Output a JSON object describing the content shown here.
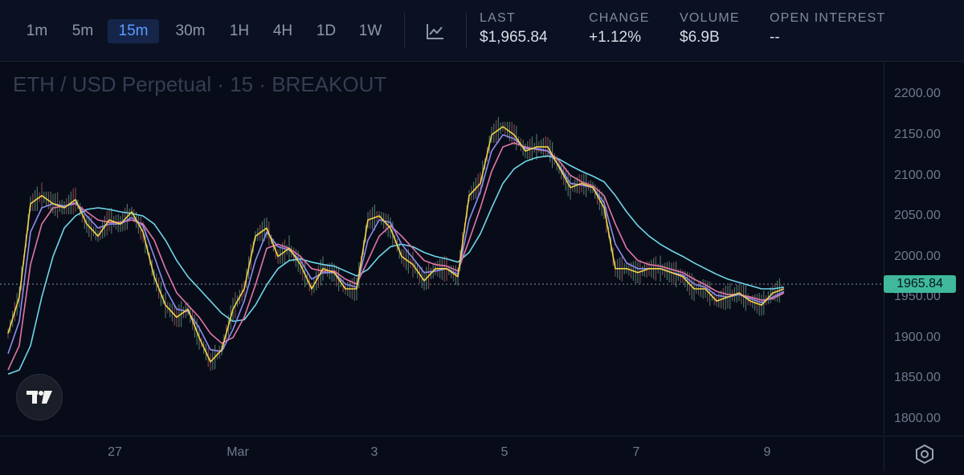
{
  "toolbar": {
    "timeframes": [
      "1m",
      "5m",
      "15m",
      "30m",
      "1H",
      "4H",
      "1D",
      "1W"
    ],
    "active_timeframe": "15m",
    "chart_type_icon": "line-chart-icon"
  },
  "stats": [
    {
      "label": "LAST",
      "value": "$1,965.84"
    },
    {
      "label": "CHANGE",
      "value": "+1.12%"
    },
    {
      "label": "VOLUME",
      "value": "$6.9B"
    },
    {
      "label": "OPEN INTEREST",
      "value": "--"
    }
  ],
  "chart_title": "ETH / USD Perpetual · 15 · BREAKOUT",
  "current_price_label": "1965.84",
  "colors": {
    "yellow": "#f3d34a",
    "purple": "#8f8cf0",
    "pink": "#e476a8",
    "cyan": "#6fd6ea",
    "price_tag": "#3fb89c"
  },
  "chart_data": {
    "type": "line",
    "ylim": [
      1780,
      2240
    ],
    "y_ticks": [
      "2200.00",
      "2150.00",
      "2100.00",
      "2050.00",
      "2000.00",
      "1950.00",
      "1900.00",
      "1850.00",
      "1800.00"
    ],
    "x_ticks": [
      "27",
      "Mar",
      "3",
      "5",
      "7",
      "9"
    ],
    "last_price": 1965.84,
    "x": [
      0,
      14,
      28,
      42,
      56,
      70,
      84,
      98,
      112,
      126,
      140,
      154,
      168,
      182,
      196,
      210,
      224,
      238,
      252,
      266,
      280,
      294,
      308,
      322,
      336,
      350,
      364,
      378,
      392,
      406,
      420,
      434,
      448,
      462,
      476,
      490,
      504,
      518,
      532,
      546,
      560,
      574,
      588,
      602,
      616,
      630,
      644,
      658,
      672,
      686,
      700,
      714,
      728,
      742,
      756,
      770,
      784,
      798,
      812,
      826,
      840,
      854,
      868,
      882,
      896,
      910,
      924,
      938,
      952,
      966
    ],
    "series": [
      {
        "values": [
          1905,
          1950,
          2065,
          2075,
          2065,
          2060,
          2070,
          2040,
          2025,
          2045,
          2040,
          2055,
          2030,
          1975,
          1940,
          1925,
          1935,
          1900,
          1870,
          1885,
          1935,
          1960,
          2025,
          2035,
          2000,
          2010,
          1990,
          1960,
          1985,
          1980,
          1960,
          1960,
          2045,
          2050,
          2035,
          2000,
          1990,
          1970,
          1985,
          1985,
          1975,
          2075,
          2090,
          2150,
          2160,
          2150,
          2130,
          2135,
          2135,
          2110,
          2085,
          2090,
          2085,
          2060,
          1985,
          1985,
          1980,
          1985,
          1985,
          1980,
          1975,
          1960,
          1960,
          1945,
          1950,
          1955,
          1945,
          1940,
          1955,
          1960
        ]
      },
      {
        "values": [
          1880,
          1920,
          2030,
          2060,
          2065,
          2062,
          2066,
          2050,
          2035,
          2040,
          2040,
          2048,
          2038,
          2000,
          1960,
          1935,
          1932,
          1912,
          1885,
          1883,
          1910,
          1945,
          1995,
          2030,
          2012,
          2008,
          1995,
          1972,
          1980,
          1980,
          1966,
          1962,
          2020,
          2045,
          2042,
          2015,
          1998,
          1980,
          1982,
          1985,
          1978,
          2045,
          2080,
          2130,
          2150,
          2145,
          2133,
          2133,
          2130,
          2112,
          2090,
          2088,
          2085,
          2066,
          2015,
          1992,
          1985,
          1985,
          1985,
          1980,
          1977,
          1966,
          1962,
          1952,
          1950,
          1953,
          1948,
          1943,
          1950,
          1957
        ]
      },
      {
        "values": [
          1860,
          1890,
          1990,
          2040,
          2060,
          2062,
          2065,
          2055,
          2045,
          2042,
          2042,
          2045,
          2040,
          2020,
          1985,
          1955,
          1940,
          1925,
          1905,
          1893,
          1900,
          1925,
          1965,
          2010,
          2015,
          2010,
          2000,
          1985,
          1982,
          1982,
          1972,
          1966,
          1995,
          2025,
          2038,
          2025,
          2010,
          1995,
          1990,
          1988,
          1982,
          2020,
          2060,
          2105,
          2135,
          2140,
          2135,
          2132,
          2130,
          2118,
          2100,
          2092,
          2087,
          2075,
          2040,
          2010,
          1995,
          1990,
          1988,
          1984,
          1980,
          1972,
          1965,
          1957,
          1953,
          1953,
          1950,
          1946,
          1948,
          1955
        ]
      },
      {
        "values": [
          1855,
          1860,
          1890,
          1950,
          2000,
          2035,
          2050,
          2058,
          2060,
          2058,
          2055,
          2053,
          2050,
          2040,
          2020,
          1995,
          1975,
          1960,
          1945,
          1930,
          1920,
          1922,
          1940,
          1965,
          1985,
          1995,
          1997,
          1993,
          1990,
          1988,
          1982,
          1976,
          1984,
          2000,
          2012,
          2015,
          2012,
          2005,
          2000,
          1997,
          1993,
          2005,
          2028,
          2060,
          2090,
          2108,
          2117,
          2122,
          2124,
          2120,
          2112,
          2105,
          2099,
          2092,
          2075,
          2055,
          2038,
          2025,
          2015,
          2007,
          2000,
          1992,
          1985,
          1978,
          1972,
          1968,
          1964,
          1960,
          1960,
          1962
        ]
      }
    ]
  }
}
